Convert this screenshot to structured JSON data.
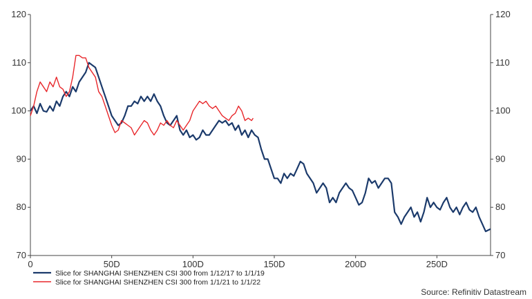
{
  "chart_data": {
    "type": "line",
    "x_unit_suffix": "D",
    "xlim": [
      0,
      283
    ],
    "ylim": [
      70,
      120
    ],
    "x_ticks": [
      {
        "value": 0,
        "label": "0"
      },
      {
        "value": 50,
        "label": "50D"
      },
      {
        "value": 100,
        "label": "100D"
      },
      {
        "value": 150,
        "label": "150D"
      },
      {
        "value": 200,
        "label": "200D"
      },
      {
        "value": 250,
        "label": "250D"
      }
    ],
    "y_ticks": [
      {
        "value": 70,
        "label": "70"
      },
      {
        "value": 80,
        "label": "80"
      },
      {
        "value": 90,
        "label": "90"
      },
      {
        "value": 100,
        "label": "100"
      },
      {
        "value": 110,
        "label": "110"
      },
      {
        "value": 120,
        "label": "120"
      }
    ],
    "dual_y_axis": true,
    "grid": false,
    "legend_position": "bottom-left",
    "source": "Source: Refinitiv Datastream",
    "series": [
      {
        "name": "Slice for SHANGHAI SHENZHEN CSI 300 from 1/12/17 to 1/1/19",
        "color": "#1b3a6b",
        "points": [
          [
            0,
            100
          ],
          [
            2,
            101
          ],
          [
            4,
            99.5
          ],
          [
            6,
            101.5
          ],
          [
            8,
            100
          ],
          [
            10,
            99.8
          ],
          [
            12,
            101
          ],
          [
            14,
            100
          ],
          [
            16,
            102
          ],
          [
            18,
            101
          ],
          [
            20,
            103
          ],
          [
            22,
            104
          ],
          [
            24,
            103
          ],
          [
            26,
            105
          ],
          [
            28,
            104
          ],
          [
            30,
            106
          ],
          [
            32,
            107
          ],
          [
            34,
            108
          ],
          [
            36,
            110
          ],
          [
            38,
            109.5
          ],
          [
            40,
            109
          ],
          [
            42,
            107
          ],
          [
            44,
            105
          ],
          [
            46,
            103
          ],
          [
            48,
            101
          ],
          [
            50,
            99
          ],
          [
            52,
            98
          ],
          [
            54,
            97
          ],
          [
            56,
            97.5
          ],
          [
            58,
            99
          ],
          [
            60,
            101
          ],
          [
            62,
            101
          ],
          [
            64,
            102
          ],
          [
            66,
            101.5
          ],
          [
            68,
            103
          ],
          [
            70,
            102
          ],
          [
            72,
            103
          ],
          [
            74,
            102
          ],
          [
            76,
            103.5
          ],
          [
            78,
            102
          ],
          [
            80,
            101
          ],
          [
            82,
            99
          ],
          [
            84,
            97.5
          ],
          [
            86,
            97
          ],
          [
            88,
            98
          ],
          [
            90,
            99
          ],
          [
            92,
            96
          ],
          [
            94,
            95
          ],
          [
            96,
            96
          ],
          [
            98,
            94.5
          ],
          [
            100,
            95
          ],
          [
            102,
            94
          ],
          [
            104,
            94.5
          ],
          [
            106,
            96
          ],
          [
            108,
            95
          ],
          [
            110,
            95
          ],
          [
            112,
            96
          ],
          [
            114,
            97
          ],
          [
            116,
            98
          ],
          [
            118,
            97.5
          ],
          [
            120,
            98
          ],
          [
            122,
            97
          ],
          [
            124,
            97.5
          ],
          [
            126,
            96
          ],
          [
            128,
            97
          ],
          [
            130,
            95
          ],
          [
            132,
            96
          ],
          [
            134,
            94.5
          ],
          [
            136,
            96
          ],
          [
            138,
            95
          ],
          [
            140,
            94.5
          ],
          [
            142,
            92
          ],
          [
            144,
            90
          ],
          [
            146,
            90
          ],
          [
            148,
            88
          ],
          [
            150,
            86
          ],
          [
            152,
            86
          ],
          [
            154,
            85
          ],
          [
            156,
            87
          ],
          [
            158,
            86
          ],
          [
            160,
            87
          ],
          [
            162,
            86.5
          ],
          [
            164,
            88
          ],
          [
            166,
            89.5
          ],
          [
            168,
            89
          ],
          [
            170,
            87
          ],
          [
            172,
            86
          ],
          [
            174,
            85
          ],
          [
            176,
            83
          ],
          [
            178,
            84
          ],
          [
            180,
            85
          ],
          [
            182,
            84
          ],
          [
            184,
            81
          ],
          [
            186,
            82
          ],
          [
            188,
            81
          ],
          [
            190,
            83
          ],
          [
            192,
            84
          ],
          [
            194,
            85
          ],
          [
            196,
            84
          ],
          [
            198,
            83.5
          ],
          [
            200,
            82
          ],
          [
            202,
            80.5
          ],
          [
            204,
            81
          ],
          [
            206,
            83
          ],
          [
            208,
            86
          ],
          [
            210,
            85
          ],
          [
            212,
            85.5
          ],
          [
            214,
            84
          ],
          [
            216,
            85
          ],
          [
            218,
            86
          ],
          [
            220,
            86
          ],
          [
            222,
            85
          ],
          [
            224,
            79
          ],
          [
            226,
            78
          ],
          [
            228,
            76.5
          ],
          [
            230,
            78
          ],
          [
            232,
            79
          ],
          [
            234,
            80
          ],
          [
            236,
            78
          ],
          [
            238,
            79
          ],
          [
            240,
            77
          ],
          [
            242,
            79
          ],
          [
            244,
            82
          ],
          [
            246,
            80
          ],
          [
            248,
            81
          ],
          [
            250,
            80
          ],
          [
            252,
            79.5
          ],
          [
            254,
            81
          ],
          [
            256,
            82
          ],
          [
            258,
            80
          ],
          [
            260,
            79
          ],
          [
            262,
            80
          ],
          [
            264,
            78.5
          ],
          [
            266,
            80
          ],
          [
            268,
            81
          ],
          [
            270,
            79.5
          ],
          [
            272,
            79
          ],
          [
            274,
            80
          ],
          [
            276,
            78
          ],
          [
            278,
            76.5
          ],
          [
            280,
            75
          ],
          [
            283,
            75.5
          ]
        ]
      },
      {
        "name": "Slice for SHANGHAI SHENZHEN CSI 300 from 1/1/21 to 1/1/22",
        "color": "#e8262a",
        "points": [
          [
            0,
            99
          ],
          [
            2,
            101
          ],
          [
            4,
            104
          ],
          [
            6,
            106
          ],
          [
            8,
            105
          ],
          [
            10,
            104
          ],
          [
            12,
            106
          ],
          [
            14,
            105
          ],
          [
            16,
            107
          ],
          [
            18,
            105
          ],
          [
            20,
            104.5
          ],
          [
            22,
            103
          ],
          [
            24,
            104
          ],
          [
            26,
            107
          ],
          [
            28,
            111.5
          ],
          [
            30,
            111.5
          ],
          [
            32,
            111
          ],
          [
            34,
            111
          ],
          [
            36,
            109
          ],
          [
            38,
            108
          ],
          [
            40,
            107
          ],
          [
            42,
            104
          ],
          [
            44,
            103
          ],
          [
            46,
            101
          ],
          [
            48,
            99
          ],
          [
            50,
            97
          ],
          [
            52,
            95.5
          ],
          [
            54,
            96
          ],
          [
            56,
            98
          ],
          [
            58,
            97.5
          ],
          [
            60,
            97
          ],
          [
            62,
            96.5
          ],
          [
            64,
            95
          ],
          [
            66,
            96
          ],
          [
            68,
            97
          ],
          [
            70,
            98
          ],
          [
            72,
            97.5
          ],
          [
            74,
            96
          ],
          [
            76,
            95
          ],
          [
            78,
            96
          ],
          [
            80,
            97.5
          ],
          [
            82,
            97
          ],
          [
            84,
            98
          ],
          [
            86,
            97
          ],
          [
            88,
            96.5
          ],
          [
            90,
            98
          ],
          [
            92,
            97
          ],
          [
            94,
            96
          ],
          [
            96,
            97
          ],
          [
            98,
            98
          ],
          [
            100,
            100
          ],
          [
            102,
            101
          ],
          [
            104,
            102
          ],
          [
            106,
            101.5
          ],
          [
            108,
            102
          ],
          [
            110,
            101
          ],
          [
            112,
            100.5
          ],
          [
            114,
            101
          ],
          [
            116,
            100
          ],
          [
            118,
            99
          ],
          [
            120,
            98.5
          ],
          [
            122,
            98
          ],
          [
            124,
            99
          ],
          [
            126,
            99.5
          ],
          [
            128,
            101
          ],
          [
            130,
            100
          ],
          [
            132,
            98
          ],
          [
            134,
            98.5
          ],
          [
            136,
            98
          ],
          [
            137,
            98.5
          ]
        ]
      }
    ]
  }
}
